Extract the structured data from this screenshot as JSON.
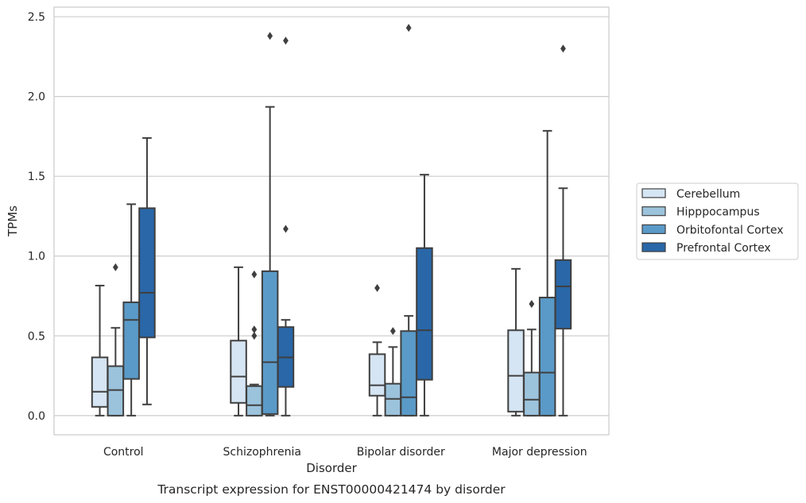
{
  "chart_data": {
    "type": "box",
    "caption": "Transcript expression for ENST00000421474 by disorder",
    "xlabel": "Disorder",
    "ylabel": "TPMs",
    "ylim": [
      -0.12,
      2.56
    ],
    "yticks": [
      "0.0",
      "0.5",
      "1.0",
      "1.5",
      "2.0",
      "2.5"
    ],
    "ytick_values": [
      0,
      0.5,
      1.0,
      1.5,
      2.0,
      2.5
    ],
    "grid": "horizontal",
    "legend_position": "right",
    "categories": [
      "Control",
      "Schizophrenia",
      "Bipolar disorder",
      "Major depression"
    ],
    "series": [
      {
        "name": "Cerebellum",
        "color": "#d6e5f3",
        "boxes": [
          {
            "whislo": 0.0,
            "q1": 0.055,
            "med": 0.15,
            "q3": 0.365,
            "whishi": 0.815,
            "fliers": []
          },
          {
            "whislo": 0.0,
            "q1": 0.08,
            "med": 0.245,
            "q3": 0.47,
            "whishi": 0.93,
            "fliers": []
          },
          {
            "whislo": 0.0,
            "q1": 0.125,
            "med": 0.19,
            "q3": 0.385,
            "whishi": 0.46,
            "fliers": [
              0.8
            ]
          },
          {
            "whislo": 0.0,
            "q1": 0.025,
            "med": 0.25,
            "q3": 0.535,
            "whishi": 0.92,
            "fliers": []
          }
        ]
      },
      {
        "name": "Hipppocampus",
        "color": "#9cc3dc",
        "boxes": [
          {
            "whislo": 0.0,
            "q1": 0.0,
            "med": 0.16,
            "q3": 0.31,
            "whishi": 0.55,
            "fliers": [
              0.93
            ]
          },
          {
            "whislo": 0.0,
            "q1": 0.0,
            "med": 0.065,
            "q3": 0.185,
            "whishi": 0.195,
            "fliers": [
              0.5,
              0.54,
              0.885
            ]
          },
          {
            "whislo": 0.0,
            "q1": 0.0,
            "med": 0.105,
            "q3": 0.2,
            "whishi": 0.43,
            "fliers": [
              0.53
            ]
          },
          {
            "whislo": 0.0,
            "q1": 0.0,
            "med": 0.1,
            "q3": 0.27,
            "whishi": 0.54,
            "fliers": [
              0.7
            ]
          }
        ]
      },
      {
        "name": "Orbitofontal Cortex",
        "color": "#5a9ac8",
        "boxes": [
          {
            "whislo": 0.0,
            "q1": 0.23,
            "med": 0.6,
            "q3": 0.71,
            "whishi": 1.325,
            "fliers": []
          },
          {
            "whislo": 0.0,
            "q1": 0.01,
            "med": 0.335,
            "q3": 0.905,
            "whishi": 1.935,
            "fliers": [
              2.38
            ]
          },
          {
            "whislo": 0.0,
            "q1": 0.0,
            "med": 0.115,
            "q3": 0.53,
            "whishi": 0.625,
            "fliers": [
              2.43
            ]
          },
          {
            "whislo": 0.0,
            "q1": 0.0,
            "med": 0.27,
            "q3": 0.74,
            "whishi": 1.785,
            "fliers": []
          }
        ]
      },
      {
        "name": "Prefrontal Cortex",
        "color": "#2967a8",
        "boxes": [
          {
            "whislo": 0.07,
            "q1": 0.49,
            "med": 0.77,
            "q3": 1.3,
            "whishi": 1.74,
            "fliers": []
          },
          {
            "whislo": 0.0,
            "q1": 0.18,
            "med": 0.365,
            "q3": 0.555,
            "whishi": 0.6,
            "fliers": [
              1.17,
              2.35
            ]
          },
          {
            "whislo": 0.0,
            "q1": 0.225,
            "med": 0.535,
            "q3": 1.05,
            "whishi": 1.51,
            "fliers": []
          },
          {
            "whislo": 0.0,
            "q1": 0.545,
            "med": 0.81,
            "q3": 0.975,
            "whishi": 1.425,
            "fliers": [
              2.3
            ]
          }
        ]
      }
    ]
  }
}
